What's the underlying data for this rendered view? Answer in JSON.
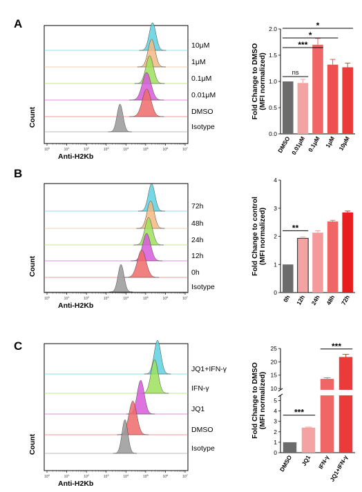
{
  "panels": [
    {
      "label": "A",
      "histogram": {
        "ylabel": "Count",
        "xlabel": "Anti-H2Kb",
        "x_ticks": [
          "10^0",
          "10^1",
          "10^2",
          "10^3",
          "10^4",
          "10^5",
          "10^6",
          "10^7"
        ],
        "tracks": [
          {
            "name": "10μM",
            "color": "#5ed1e0",
            "peak": 5.35,
            "width": 0.17
          },
          {
            "name": "1μM",
            "color": "#f5b884",
            "peak": 5.3,
            "width": 0.18
          },
          {
            "name": "0.1μM",
            "color": "#9de05a",
            "peak": 5.2,
            "width": 0.19
          },
          {
            "name": "0.01μM",
            "color": "#d65ad8",
            "peak": 5.05,
            "width": 0.22
          },
          {
            "name": "DMSO",
            "color": "#ee6b6b",
            "peak": 5.05,
            "width": 0.22
          },
          {
            "name": "Isotype",
            "color": "#999999",
            "peak": 3.7,
            "width": 0.15
          }
        ]
      },
      "chart_data": {
        "type": "bar",
        "categories": [
          "DMSO",
          "0.01μM",
          "0.1μM",
          "1μM",
          "10μM"
        ],
        "values": [
          1.0,
          0.97,
          1.7,
          1.32,
          1.27
        ],
        "errors": [
          0,
          0.07,
          0.12,
          0.1,
          0.08
        ],
        "colors": [
          "#6b6b6b",
          "#f4a3a3",
          "#f06666",
          "#ee4f4f",
          "#ea3a3a"
        ],
        "ylabel": "Fold Change to DMSO\n(MFI normalized)",
        "ylim": [
          0,
          2.0
        ],
        "yticks": [
          "0.0",
          "0.5",
          "1.0",
          "1.5",
          "2.0"
        ],
        "significance": [
          {
            "from": 0,
            "to": 1,
            "text": "ns"
          },
          {
            "from": 0,
            "to": 2,
            "text": "***"
          },
          {
            "from": 0,
            "to": 3,
            "text": "*"
          },
          {
            "from": 0,
            "to": 4,
            "text": "*"
          }
        ]
      }
    },
    {
      "label": "B",
      "histogram": {
        "ylabel": "Count",
        "xlabel": "Anti-H2Kb",
        "x_ticks": [
          "10^0",
          "10^1",
          "10^2",
          "10^3",
          "10^4",
          "10^5",
          "10^6",
          "10^7"
        ],
        "tracks": [
          {
            "name": "72h",
            "color": "#5ed1e0",
            "peak": 5.3,
            "width": 0.17
          },
          {
            "name": "48h",
            "color": "#f5b884",
            "peak": 5.25,
            "width": 0.18
          },
          {
            "name": "24h",
            "color": "#9de05a",
            "peak": 5.15,
            "width": 0.19
          },
          {
            "name": "12h",
            "color": "#d65ad8",
            "peak": 5.05,
            "width": 0.2
          },
          {
            "name": "0h",
            "color": "#ee6b6b",
            "peak": 4.8,
            "width": 0.22
          },
          {
            "name": "Isotype",
            "color": "#999999",
            "peak": 3.75,
            "width": 0.15
          }
        ]
      },
      "chart_data": {
        "type": "bar",
        "categories": [
          "0h",
          "12h",
          "24h",
          "48h",
          "72h"
        ],
        "values": [
          1.0,
          1.93,
          2.13,
          2.53,
          2.85
        ],
        "errors": [
          0,
          0.05,
          0.07,
          0.04,
          0.05
        ],
        "colors": [
          "#6b6b6b",
          "#f4a3a3",
          "#f49a9a",
          "#f06666",
          "#e81e1e"
        ],
        "ylabel": "Fold Change to control\n(MFI normalized)",
        "ylim": [
          0,
          4
        ],
        "yticks": [
          "0",
          "1",
          "2",
          "3",
          "4"
        ],
        "significance": [
          {
            "from": 0,
            "to": 1,
            "text": "**"
          }
        ]
      }
    },
    {
      "label": "C",
      "histogram": {
        "ylabel": "Count",
        "xlabel": "Anti-H2Kb",
        "x_ticks": [
          "10^0",
          "10^1",
          "10^2",
          "10^3",
          "10^4",
          "10^5",
          "10^6",
          "10^7"
        ],
        "tracks": [
          {
            "name": "JQ1+IFN-γ",
            "color": "#5ed1e0",
            "peak": 5.6,
            "width": 0.17
          },
          {
            "name": "IFN-γ",
            "color": "#9de05a",
            "peak": 5.45,
            "width": 0.18
          },
          {
            "name": "JQ1",
            "color": "#d65ad8",
            "peak": 4.75,
            "width": 0.18
          },
          {
            "name": "DMSO",
            "color": "#ee6b6b",
            "peak": 4.35,
            "width": 0.2
          },
          {
            "name": "Isotype",
            "color": "#999999",
            "peak": 3.95,
            "width": 0.15
          }
        ]
      },
      "chart_data": {
        "type": "bar",
        "categories": [
          "DMSO",
          "JQ1",
          "IFN-γ",
          "JQ1+IFN-γ"
        ],
        "values": [
          1.0,
          2.4,
          13.6,
          21.8
        ],
        "errors": [
          0,
          0.05,
          0.4,
          1.0
        ],
        "colors": [
          "#6b6b6b",
          "#f4a3a3",
          "#f06666",
          "#ea3a3a"
        ],
        "ylabel": "Fold Change to DMSO\n(MFI normalized)",
        "ylim": [
          0,
          25
        ],
        "axis_break": [
          5.5,
          9.5
        ],
        "yticks_lower": [
          "0",
          "1",
          "2",
          "3",
          "4",
          "5"
        ],
        "yticks_upper": [
          "10",
          "15",
          "20",
          "25"
        ],
        "significance": [
          {
            "from": 0,
            "to": 1,
            "text": "***"
          },
          {
            "from": 2,
            "to": 3,
            "text": "***"
          }
        ]
      }
    }
  ]
}
